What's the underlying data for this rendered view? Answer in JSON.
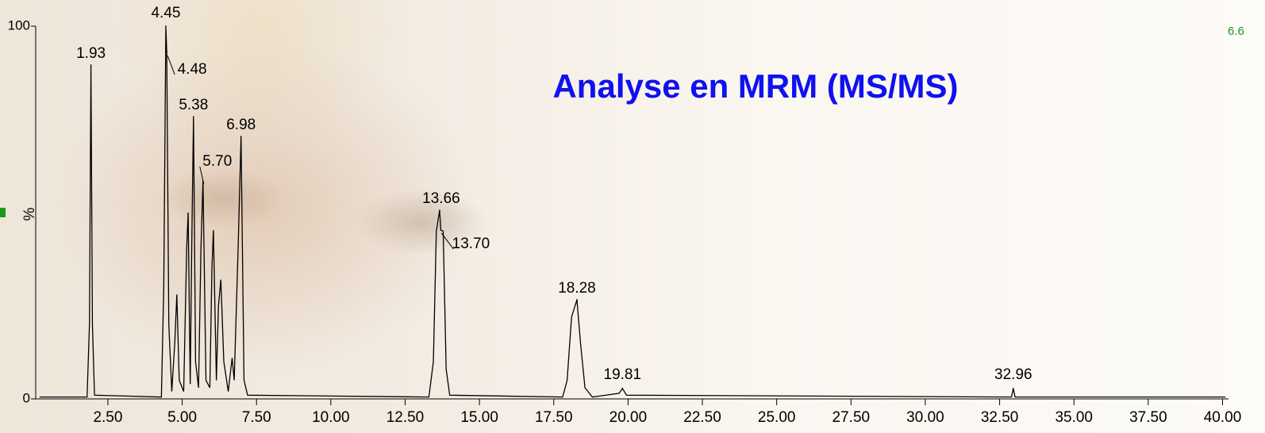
{
  "chart_data": {
    "type": "line",
    "title": "Analyse en MRM (MS/MS)",
    "ylabel": "%",
    "corner_label": "6.6",
    "xlim": [
      0,
      40.2
    ],
    "ylim": [
      0,
      100
    ],
    "yticks": [
      0,
      100
    ],
    "xticks": [
      {
        "value": 2.5,
        "label": "2.50"
      },
      {
        "value": 5,
        "label": "5.00"
      },
      {
        "value": 7.5,
        "label": "7.50"
      },
      {
        "value": 10,
        "label": "10.00"
      },
      {
        "value": 12.5,
        "label": "12.50"
      },
      {
        "value": 15,
        "label": "15.00"
      },
      {
        "value": 17.5,
        "label": "17.50"
      },
      {
        "value": 20,
        "label": "20.00"
      },
      {
        "value": 22.5,
        "label": "22.50"
      },
      {
        "value": 25,
        "label": "25.00"
      },
      {
        "value": 27.5,
        "label": "27.50"
      },
      {
        "value": 30,
        "label": "30.00"
      },
      {
        "value": 32.5,
        "label": "32.50"
      },
      {
        "value": 35,
        "label": "35.00"
      },
      {
        "value": 37.5,
        "label": "37.50"
      },
      {
        "value": 40,
        "label": "40.00"
      }
    ],
    "series": [
      {
        "color": "#000000",
        "x": [
          0.2,
          1.8,
          1.88,
          1.93,
          1.98,
          2.05,
          4.3,
          4.38,
          4.45,
          4.48,
          4.55,
          4.65,
          4.75,
          4.82,
          4.9,
          5.05,
          5.15,
          5.2,
          5.27,
          5.32,
          5.38,
          5.45,
          5.55,
          5.63,
          5.7,
          5.8,
          5.93,
          6.0,
          6.05,
          6.15,
          6.22,
          6.3,
          6.4,
          6.55,
          6.68,
          6.75,
          6.88,
          6.98,
          7.08,
          7.2,
          13.3,
          13.45,
          13.55,
          13.66,
          13.7,
          13.78,
          13.88,
          14.0,
          17.8,
          17.95,
          18.1,
          18.28,
          18.4,
          18.55,
          18.8,
          19.7,
          19.81,
          19.95,
          32.9,
          32.96,
          33.02,
          40.1
        ],
        "values": [
          0.5,
          0.5,
          20,
          89.6,
          20,
          1,
          0.5,
          30,
          100,
          93,
          20,
          2,
          15,
          28,
          5,
          2,
          40,
          50,
          4,
          40,
          75.7,
          10,
          3,
          40,
          58.5,
          5,
          3,
          35,
          45.3,
          5,
          25,
          32,
          10,
          2,
          11,
          5,
          40,
          70.4,
          5,
          1,
          0.5,
          10,
          45,
          50.6,
          45.3,
          45,
          8,
          1,
          0.5,
          5,
          22,
          26.6,
          15,
          3,
          0.5,
          1.5,
          2.8,
          1,
          0.5,
          2.8,
          0.5,
          0.5
        ]
      },
      {
        "type": "scatter",
        "x": [
          1.93,
          4.45,
          4.48,
          5.38,
          5.7,
          6.98,
          13.66,
          13.7,
          18.28,
          19.81,
          32.96
        ],
        "values": [
          89.6,
          100,
          93,
          75.7,
          58.5,
          70.4,
          50.6,
          45.3,
          26.6,
          2.8,
          2.8
        ],
        "value_labels": [
          "1.93",
          "4.45",
          "4.48",
          "5.38",
          "5.70",
          "6.98",
          "13.66",
          "13.70",
          "18.28",
          "19.81",
          "32.96"
        ]
      }
    ]
  }
}
